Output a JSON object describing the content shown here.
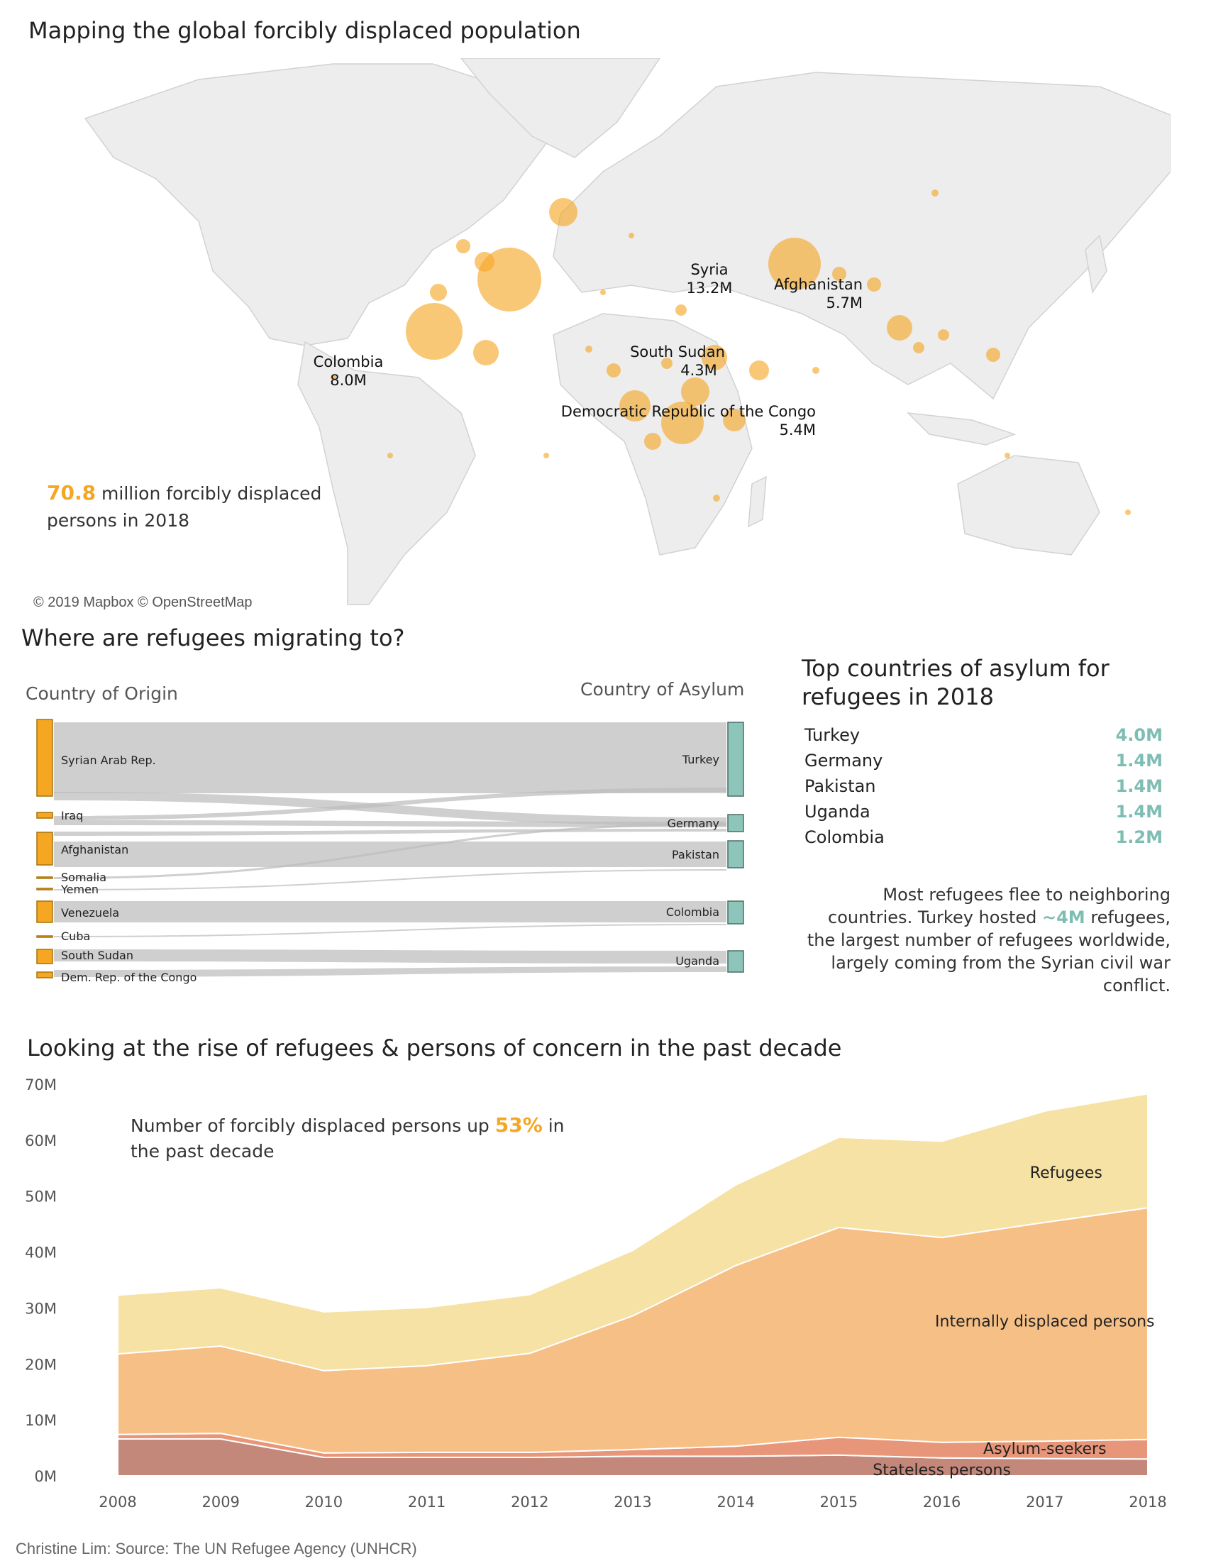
{
  "map": {
    "title": "Mapping the global forcibly displaced population",
    "callout": {
      "value": "70.8",
      "text_line1": "million forcibly displaced",
      "text_line2": "persons in 2018"
    },
    "attribution": "© 2019 Mapbox © OpenStreetMap",
    "bubble_color": "#F5A623",
    "labels": [
      {
        "name": "Syria",
        "value": "13.2M"
      },
      {
        "name": "Afghanistan",
        "value": "5.7M"
      },
      {
        "name": "Colombia",
        "value": "8.0M"
      },
      {
        "name": "South Sudan",
        "value": "4.3M"
      },
      {
        "name": "Democratic Republic of the Congo",
        "value": "5.4M"
      }
    ]
  },
  "sankey": {
    "title": "Where are refugees migrating to?",
    "origin_header": "Country of Origin",
    "asylum_header": "Country of Asylum",
    "origins": [
      "Syrian Arab Rep.",
      "Iraq",
      "Afghanistan",
      "Somalia",
      "Yemen",
      "Venezuela",
      "Cuba",
      "South Sudan",
      "Dem. Rep. of the Congo"
    ],
    "destinations": [
      "Turkey",
      "Germany",
      "Pakistan",
      "Colombia",
      "Uganda"
    ],
    "origin_color": "#F5A623",
    "destination_color": "#8EC5BA"
  },
  "asylum": {
    "title_line1": "Top countries of asylum for",
    "title_line2": "refugees in 2018",
    "rows": [
      {
        "country": "Turkey",
        "value": "4.0M"
      },
      {
        "country": "Germany",
        "value": "1.4M"
      },
      {
        "country": "Pakistan",
        "value": "1.4M"
      },
      {
        "country": "Uganda",
        "value": "1.4M"
      },
      {
        "country": "Colombia",
        "value": "1.2M"
      }
    ],
    "note": {
      "line1": "Most refugees flee to neighboring",
      "line2_a": "countries. Turkey hosted ",
      "line2_hl": "~4M",
      "line2_b": " refugees,",
      "line3": "the largest number of refugees worldwide,",
      "line4": "largely coming from the Syrian civil war",
      "line5": "conflict."
    }
  },
  "trend": {
    "title": "Looking at the rise of refugees & persons of concern in the past decade",
    "callout": {
      "text_a": "Number of forcibly displaced persons up ",
      "highlight": "53%",
      "text_b": " in",
      "line2": "the past decade"
    }
  },
  "chart_data": {
    "type": "area",
    "x": [
      2008,
      2009,
      2010,
      2011,
      2012,
      2013,
      2014,
      2015,
      2016,
      2017,
      2018
    ],
    "ylim": [
      0,
      70
    ],
    "y_ticks": [
      "0M",
      "10M",
      "20M",
      "30M",
      "40M",
      "50M",
      "60M",
      "70M"
    ],
    "stacked": true,
    "series": [
      {
        "name": "Stateless persons",
        "color": "#C4887B",
        "values": [
          6.6,
          6.6,
          3.3,
          3.3,
          3.3,
          3.5,
          3.5,
          3.7,
          3.2,
          3.1,
          3.0
        ]
      },
      {
        "name": "Asylum-seekers",
        "color": "#E8967A",
        "values": [
          0.8,
          1.0,
          0.8,
          0.9,
          0.9,
          1.2,
          1.8,
          3.2,
          2.8,
          3.1,
          3.5
        ]
      },
      {
        "name": "Internally displaced persons",
        "color": "#F6BF86",
        "values": [
          14.4,
          15.6,
          14.7,
          15.5,
          17.7,
          23.9,
          32.3,
          37.5,
          36.6,
          39.1,
          41.4
        ]
      },
      {
        "name": "Refugees",
        "color": "#F6E2A4",
        "values": [
          10.5,
          10.4,
          10.5,
          10.4,
          10.5,
          11.7,
          14.4,
          16.1,
          17.2,
          19.9,
          20.4
        ]
      }
    ]
  },
  "source": "Christine Lim: Source: The UN Refugee Agency (UNHCR)"
}
